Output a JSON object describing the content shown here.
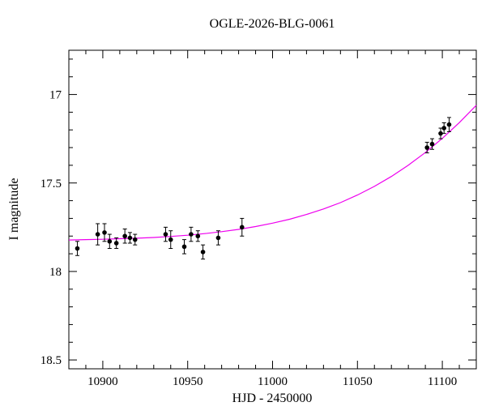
{
  "page": {
    "background": "#ffffff"
  },
  "chart_data": {
    "type": "scatter",
    "title": "OGLE-2026-BLG-0061",
    "xlabel": "HJD - 2450000",
    "ylabel": "I magnitude",
    "xlim": [
      10880,
      11120
    ],
    "ylim": [
      18.55,
      16.75
    ],
    "y_inverted": true,
    "grid": false,
    "legend_position": "none",
    "x_major_ticks": [
      10900,
      10950,
      11000,
      11050,
      11100
    ],
    "x_major_labels": [
      "10900",
      "10950",
      "11000",
      "11050",
      "11100"
    ],
    "x_minor_step": 10,
    "y_major_ticks": [
      17,
      17.5,
      18,
      18.5
    ],
    "y_major_labels": [
      "17",
      "17.5",
      "18",
      "18.5"
    ],
    "y_minor_step": 0.1,
    "colors": {
      "data": "#000000",
      "model": "#ee00ee"
    },
    "series": [
      {
        "name": "ogle-i-band-photometry",
        "type": "scatter",
        "color": "#000000",
        "points": [
          [
            10885,
            17.87,
            0.04
          ],
          [
            10897,
            17.79,
            0.06
          ],
          [
            10901,
            17.78,
            0.05
          ],
          [
            10904,
            17.83,
            0.04
          ],
          [
            10908,
            17.84,
            0.03
          ],
          [
            10913,
            17.8,
            0.04
          ],
          [
            10916,
            17.81,
            0.03
          ],
          [
            10919,
            17.82,
            0.03
          ],
          [
            10937,
            17.79,
            0.04
          ],
          [
            10940,
            17.82,
            0.05
          ],
          [
            10948,
            17.86,
            0.04
          ],
          [
            10952,
            17.79,
            0.04
          ],
          [
            10956,
            17.8,
            0.03
          ],
          [
            10959,
            17.89,
            0.04
          ],
          [
            10968,
            17.81,
            0.04
          ],
          [
            10982,
            17.75,
            0.05
          ],
          [
            11091,
            17.3,
            0.03
          ],
          [
            11094,
            17.28,
            0.03
          ],
          [
            11099,
            17.22,
            0.03
          ],
          [
            11101,
            17.19,
            0.03
          ],
          [
            11104,
            17.17,
            0.04
          ]
        ]
      },
      {
        "name": "microlensing-model",
        "type": "line",
        "color": "#ee00ee",
        "x": [
          10880,
          10890,
          10900,
          10910,
          10920,
          10930,
          10940,
          10950,
          10960,
          10970,
          10980,
          10990,
          11000,
          11010,
          11020,
          11030,
          11040,
          11050,
          11060,
          11070,
          11080,
          11090,
          11100,
          11110,
          11120
        ],
        "y": [
          17.822,
          17.82,
          17.818,
          17.815,
          17.812,
          17.808,
          17.802,
          17.795,
          17.786,
          17.775,
          17.762,
          17.746,
          17.727,
          17.705,
          17.678,
          17.647,
          17.611,
          17.568,
          17.519,
          17.463,
          17.399,
          17.328,
          17.248,
          17.159,
          17.061
        ]
      }
    ]
  }
}
